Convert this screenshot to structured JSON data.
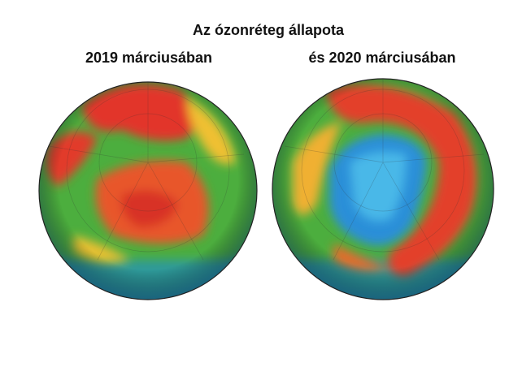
{
  "title": "Az ózonréteg állapota",
  "panels": [
    {
      "label": "2019 márciusában"
    },
    {
      "label": "és 2020 márciusában"
    }
  ]
}
